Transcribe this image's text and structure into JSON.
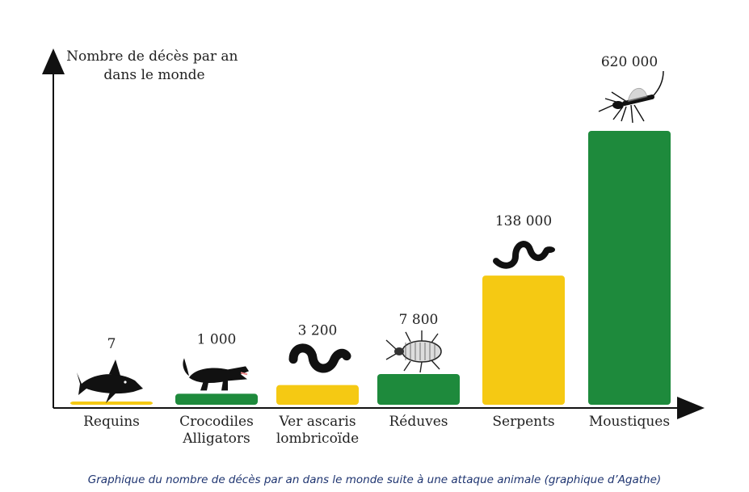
{
  "chart_data": {
    "type": "bar",
    "ylabel": [
      "Nombre de décès par an",
      "dans le monde"
    ],
    "categories": [
      [
        "Requins"
      ],
      [
        "Crocodiles",
        "Alligators"
      ],
      [
        "Ver ascaris",
        "lombricoïde"
      ],
      [
        "Réduves"
      ],
      [
        "Serpents"
      ],
      [
        "Moustiques"
      ]
    ],
    "values": [
      7,
      1000,
      3200,
      7800,
      138000,
      620000
    ],
    "value_labels": [
      "7",
      "1 000",
      "3 200",
      "7 800",
      "138 000",
      "620 000"
    ],
    "icons": [
      "shark-icon",
      "crocodile-icon",
      "worm-icon",
      "bug-icon",
      "snake-icon",
      "mosquito-icon"
    ],
    "bar_colors": [
      "#f5c913",
      "#1e8a3c",
      "#f5c913",
      "#1e8a3c",
      "#f5c913",
      "#1e8a3c"
    ],
    "grid": false
  },
  "caption": "Graphique du nombre de décès par an dans le monde suite à une attaque animale (graphique d’Agathe)"
}
